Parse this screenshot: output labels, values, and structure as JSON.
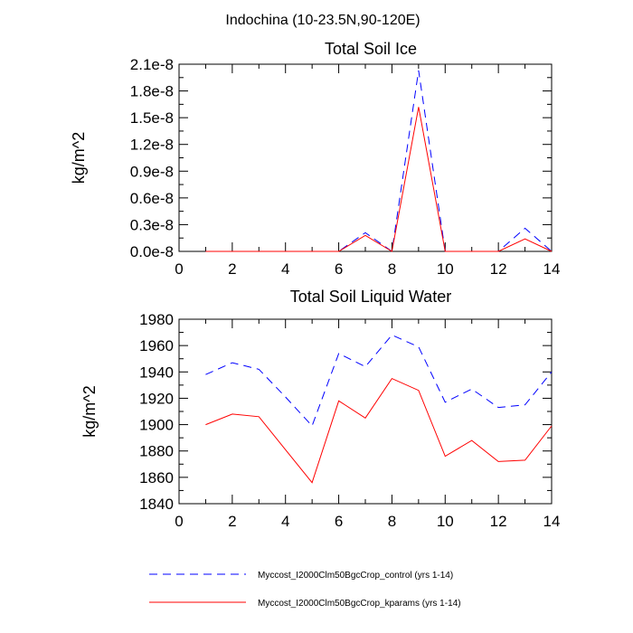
{
  "figure_title": "Indochina (10-23.5N,90-120E)",
  "legend": [
    {
      "label": "Myccost_I2000Clm50BgcCrop_control (yrs 1-14)",
      "color": "#0000ff",
      "dash": "dashed"
    },
    {
      "label": "Myccost_I2000Clm50BgcCrop_kparams (yrs 1-14)",
      "color": "#ff0000",
      "dash": "solid"
    }
  ],
  "chart_data": [
    {
      "type": "line",
      "title": "Total Soil Ice",
      "xlabel": "",
      "ylabel": "kg/m^2",
      "xlim": [
        0,
        14
      ],
      "ylim": [
        0,
        2.1
      ],
      "xticks": [
        0,
        2,
        4,
        6,
        8,
        10,
        12,
        14
      ],
      "xtick_labels": [
        "0",
        "2",
        "4",
        "6",
        "8",
        "10",
        "12",
        "14"
      ],
      "yticks": [
        0,
        0.3,
        0.6,
        0.9,
        1.2,
        1.5,
        1.8,
        2.1
      ],
      "ytick_labels": [
        "0.0e-8",
        "0.3e-8",
        "0.6e-8",
        "0.9e-8",
        "1.2e-8",
        "1.5e-8",
        "1.8e-8",
        "2.1e-8"
      ],
      "y_scale_note": "values in units of 1e-8 kg/m^2",
      "x": [
        1,
        2,
        3,
        4,
        5,
        6,
        7,
        8,
        9,
        10,
        11,
        12,
        13,
        14
      ],
      "series": [
        {
          "color": "#0000ff",
          "dash": "dashed",
          "values": [
            0,
            0,
            0,
            0,
            0,
            0,
            0.21,
            0,
            2.03,
            0,
            0,
            0,
            0.26,
            0
          ]
        },
        {
          "color": "#ff0000",
          "dash": "solid",
          "values": [
            0,
            0,
            0,
            0,
            0,
            0,
            0.18,
            0,
            1.62,
            0,
            0,
            0,
            0.14,
            0
          ]
        }
      ],
      "grid": false
    },
    {
      "type": "line",
      "title": "Total Soil Liquid Water",
      "xlabel": "",
      "ylabel": "kg/m^2",
      "xlim": [
        0,
        14
      ],
      "ylim": [
        1840,
        1980
      ],
      "xticks": [
        0,
        2,
        4,
        6,
        8,
        10,
        12,
        14
      ],
      "xtick_labels": [
        "0",
        "2",
        "4",
        "6",
        "8",
        "10",
        "12",
        "14"
      ],
      "yticks": [
        1840,
        1860,
        1880,
        1900,
        1920,
        1940,
        1960,
        1980
      ],
      "ytick_labels": [
        "1840",
        "1860",
        "1880",
        "1900",
        "1920",
        "1940",
        "1960",
        "1980"
      ],
      "x": [
        1,
        2,
        3,
        4,
        5,
        6,
        7,
        8,
        9,
        10,
        11,
        12,
        13,
        14
      ],
      "series": [
        {
          "color": "#0000ff",
          "dash": "dashed",
          "values": [
            1938,
            1947,
            1942,
            1921,
            1899,
            1954,
            1944,
            1968,
            1959,
            1917,
            1927,
            1913,
            1915,
            1940
          ]
        },
        {
          "color": "#ff0000",
          "dash": "solid",
          "values": [
            1900,
            1908,
            1906,
            1881,
            1856,
            1918,
            1905,
            1935,
            1926,
            1876,
            1888,
            1872,
            1873,
            1899
          ]
        }
      ],
      "grid": false
    }
  ]
}
